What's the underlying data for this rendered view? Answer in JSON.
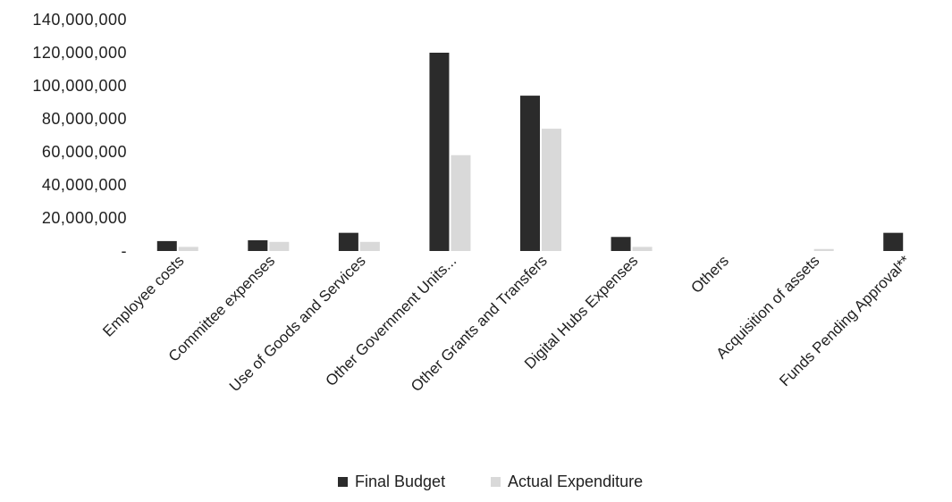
{
  "chart_data": {
    "type": "bar",
    "categories": [
      "Employee costs",
      "Committee expenses",
      "Use of Goods and Services",
      "Other Government Units...",
      "Other Grants and Transfers",
      "Digital Hubs Expenses",
      "Others",
      "Acquisition of assets",
      "Funds Pending Approval**"
    ],
    "series": [
      {
        "name": "Final Budget",
        "color": "#2b2b2b",
        "values": [
          6000000,
          6500000,
          11000000,
          120000000,
          94000000,
          8500000,
          0,
          0,
          11000000
        ]
      },
      {
        "name": "Actual Expenditure",
        "color": "#d9d9d9",
        "values": [
          2500000,
          5500000,
          5500000,
          58000000,
          74000000,
          2500000,
          0,
          1200000,
          0
        ]
      }
    ],
    "yticks": [
      "140,000,000",
      "120,000,000",
      "100,000,000",
      "80,000,000",
      "60,000,000",
      "40,000,000",
      "20,000,000",
      "-"
    ],
    "ylim": [
      0,
      140000000
    ],
    "grid": false,
    "legend_position": "bottom"
  }
}
